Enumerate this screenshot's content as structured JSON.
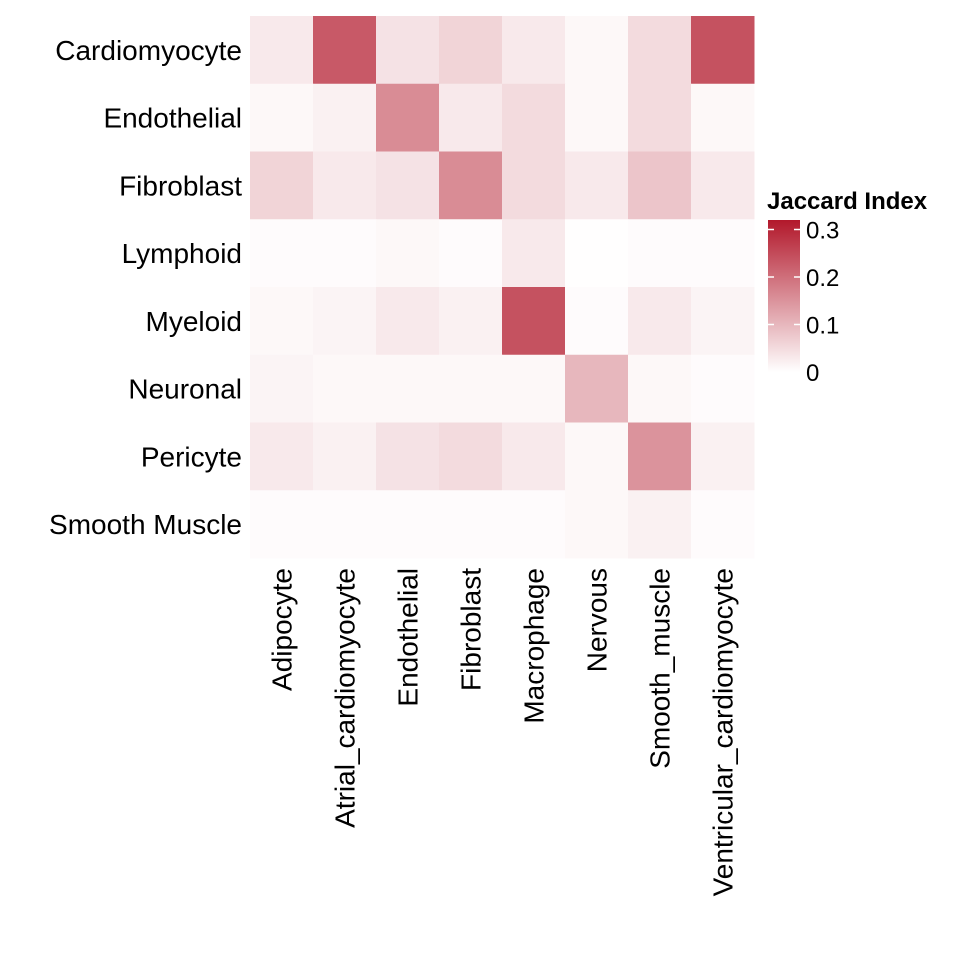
{
  "chart_data": {
    "type": "heatmap",
    "title": "",
    "xlabel": "",
    "ylabel": "",
    "x_categories": [
      "Adipocyte",
      "Atrial_cardiomyocyte",
      "Endothelial",
      "Fibroblast",
      "Macrophage",
      "Nervous",
      "Smooth_muscle",
      "Ventricular_cardiomyocyte"
    ],
    "y_categories": [
      "Cardiomyocyte",
      "Endothelial",
      "Fibroblast",
      "Lymphoid",
      "Myeloid",
      "Neuronal",
      "Pericyte",
      "Smooth Muscle"
    ],
    "values": [
      [
        0.03,
        0.23,
        0.04,
        0.06,
        0.03,
        0.01,
        0.05,
        0.24
      ],
      [
        0.01,
        0.02,
        0.16,
        0.03,
        0.05,
        0.01,
        0.05,
        0.01
      ],
      [
        0.06,
        0.03,
        0.04,
        0.16,
        0.05,
        0.03,
        0.08,
        0.03
      ],
      [
        0.005,
        0.005,
        0.01,
        0.005,
        0.03,
        0.002,
        0.005,
        0.005
      ],
      [
        0.01,
        0.015,
        0.03,
        0.02,
        0.24,
        0.005,
        0.03,
        0.015
      ],
      [
        0.015,
        0.01,
        0.01,
        0.01,
        0.01,
        0.1,
        0.01,
        0.005
      ],
      [
        0.03,
        0.02,
        0.04,
        0.05,
        0.03,
        0.01,
        0.15,
        0.02
      ],
      [
        0.005,
        0.005,
        0.005,
        0.005,
        0.005,
        0.01,
        0.02,
        0.005
      ]
    ],
    "legend": {
      "title": "Jaccard Index",
      "ticks": [
        {
          "value": 0,
          "label": "0"
        },
        {
          "value": 0.1,
          "label": "0.1"
        },
        {
          "value": 0.2,
          "label": "0.2"
        },
        {
          "value": 0.3,
          "label": "0.3"
        }
      ],
      "range": [
        0,
        0.32
      ],
      "position": "right"
    },
    "colors": {
      "low": "#ffffff",
      "high": "#b2182b"
    },
    "grid": false
  }
}
